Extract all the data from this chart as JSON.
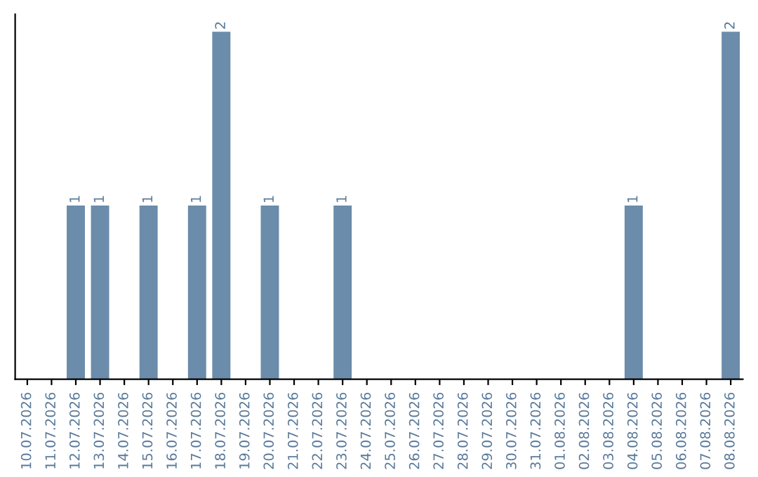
{
  "chart_data": {
    "type": "bar",
    "categories": [
      "10.07.2026",
      "11.07.2026",
      "12.07.2026",
      "13.07.2026",
      "14.07.2026",
      "15.07.2026",
      "16.07.2026",
      "17.07.2026",
      "18.07.2026",
      "19.07.2026",
      "20.07.2026",
      "21.07.2026",
      "22.07.2026",
      "23.07.2026",
      "24.07.2026",
      "25.07.2026",
      "26.07.2026",
      "27.07.2026",
      "28.07.2026",
      "29.07.2026",
      "30.07.2026",
      "31.07.2026",
      "01.08.2026",
      "02.08.2026",
      "03.08.2026",
      "04.08.2026",
      "05.08.2026",
      "06.08.2026",
      "07.08.2026",
      "08.08.2026"
    ],
    "values": [
      0,
      0,
      1,
      1,
      0,
      1,
      0,
      1,
      2,
      0,
      1,
      0,
      0,
      1,
      0,
      0,
      0,
      0,
      0,
      0,
      0,
      0,
      0,
      0,
      0,
      1,
      0,
      0,
      0,
      2
    ],
    "value_labels": [
      null,
      null,
      "1",
      "1",
      null,
      "1",
      null,
      "1",
      "2",
      null,
      "1",
      null,
      null,
      "1",
      null,
      null,
      null,
      null,
      null,
      null,
      null,
      null,
      null,
      null,
      null,
      "1",
      null,
      null,
      null,
      "2"
    ],
    "color": "#6b8caa",
    "tick_labels": "x",
    "grid": false
  }
}
